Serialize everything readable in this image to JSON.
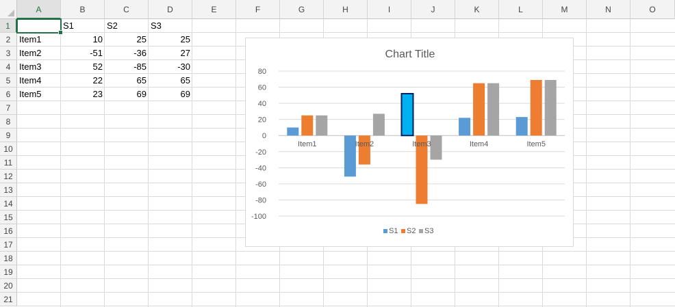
{
  "spreadsheet": {
    "columns": [
      "A",
      "B",
      "C",
      "D",
      "E",
      "F",
      "G",
      "H",
      "I",
      "J",
      "K",
      "L",
      "M",
      "N",
      "O"
    ],
    "rows": [
      "1",
      "2",
      "3",
      "4",
      "5",
      "6",
      "7",
      "8",
      "9",
      "10",
      "11",
      "12",
      "13",
      "14",
      "15",
      "16",
      "17",
      "18",
      "19",
      "20",
      "21"
    ],
    "active_cell": "A1",
    "cells": [
      [
        "",
        "S1",
        "S2",
        "S3"
      ],
      [
        "Item1",
        "10",
        "25",
        "25"
      ],
      [
        "Item2",
        "-51",
        "-36",
        "27"
      ],
      [
        "Item3",
        "52",
        "-85",
        "-30"
      ],
      [
        "Item4",
        "22",
        "65",
        "65"
      ],
      [
        "Item5",
        "23",
        "69",
        "69"
      ]
    ]
  },
  "colors": {
    "S1": "#5b9bd5",
    "S2": "#ed7d31",
    "S3": "#a5a5a5",
    "selected_point_fill": "#00b0f0",
    "selected_point_border": "#002060",
    "active_header": "#217346"
  },
  "chart_data": {
    "type": "bar",
    "title": "Chart Title",
    "categories": [
      "Item1",
      "Item2",
      "Item3",
      "Item4",
      "Item5"
    ],
    "series": [
      {
        "name": "S1",
        "values": [
          10,
          -51,
          52,
          22,
          23
        ]
      },
      {
        "name": "S2",
        "values": [
          25,
          -36,
          -85,
          65,
          69
        ]
      },
      {
        "name": "S3",
        "values": [
          25,
          27,
          -30,
          65,
          69
        ]
      }
    ],
    "ylim": [
      -100,
      80
    ],
    "yticks": [
      80,
      60,
      40,
      20,
      0,
      -20,
      -40,
      -60,
      -80,
      -100
    ],
    "grid": true,
    "legend": "bottom",
    "selected_point": {
      "series": "S1",
      "category": "Item3"
    }
  }
}
